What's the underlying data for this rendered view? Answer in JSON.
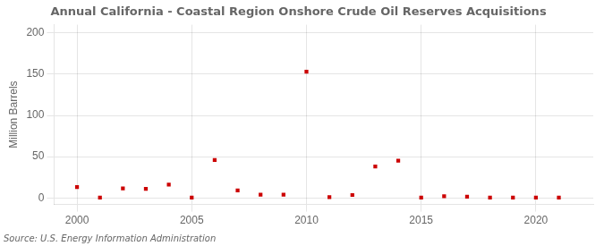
{
  "chart_data": {
    "type": "scatter",
    "title": "Annual California - Coastal Region Onshore Crude Oil Reserves Acquisitions",
    "ylabel": "Million Barrels",
    "annotation": "Source: U.S. Energy Information Administration",
    "x": [
      2000,
      2001,
      2002,
      2003,
      2004,
      2005,
      2006,
      2007,
      2008,
      2009,
      2010,
      2011,
      2012,
      2013,
      2014,
      2015,
      2016,
      2017,
      2018,
      2019,
      2020,
      2021
    ],
    "values": [
      13.0,
      0.5,
      11.5,
      11.0,
      16.0,
      0.3,
      46.0,
      9.0,
      4.0,
      4.0,
      153.0,
      1.0,
      3.5,
      38.0,
      45.0,
      0.3,
      2.0,
      1.5,
      0.5,
      0.5,
      0.5,
      0.5
    ],
    "color": "#cc0000",
    "marker": "square",
    "xlim": [
      1999.0,
      2022.5
    ],
    "ylim": [
      -8,
      210
    ],
    "xticks": [
      2000,
      2005,
      2010,
      2015,
      2020
    ],
    "yticks": [
      0,
      50,
      100,
      150,
      200
    ],
    "grid": true
  }
}
